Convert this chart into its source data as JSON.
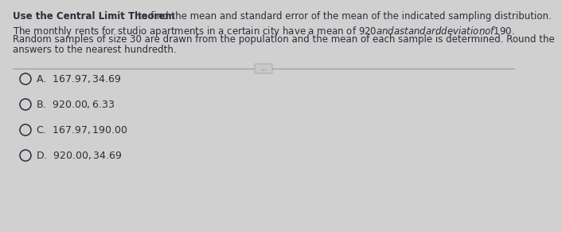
{
  "title_bold": "Use the Central Limit Theorem",
  "title_normal": "  to find the mean and standard error of the mean of the indicated sampling distribution.",
  "body_lines": [
    "The monthly rents for studio apartments in a certain city have a mean of $920 and a standard deviation of $190.",
    "Random samples of size 30 are drawn from the population and the mean of each sample is determined. Round the",
    "answers to the nearest hundredth."
  ],
  "choices": [
    "A.  $167.97, $34.69",
    "B.  $920.00, $6.33",
    "C.  $167.97, $190.00",
    "D.  $920.00, $34.69"
  ],
  "bg_color": "#d0d0d0",
  "text_color": "#2c2c3a",
  "title_fontsize": 8.5,
  "body_fontsize": 8.5,
  "choice_fontsize": 9.0,
  "circle_color": "#2c2c3a",
  "line_color": "#999999",
  "dots_box_color": "#c8c8c8",
  "dots_box_edge": "#aaaaaa"
}
